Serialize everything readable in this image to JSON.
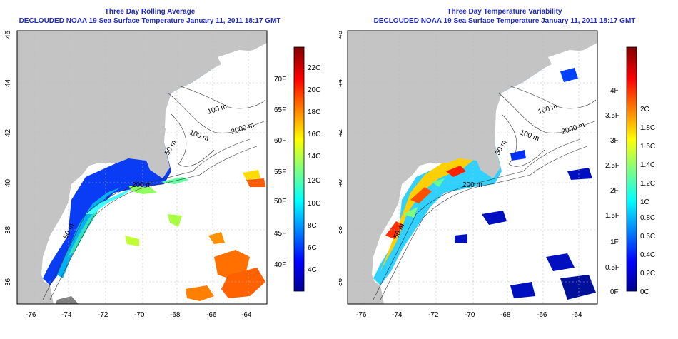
{
  "colors": {
    "land": "#c4c4c4",
    "ocean": "#ffffff",
    "title": "#1f28c8",
    "jet": [
      "#00008f",
      "#0000ff",
      "#0080ff",
      "#00ffff",
      "#80ff80",
      "#ffff00",
      "#ff8000",
      "#ff0000",
      "#800000"
    ]
  },
  "left_panel": {
    "title_line1": "Three Day Rolling Average",
    "title_line2": "DECLOUDED NOAA 19 Sea Surface Temperature January 11, 2011 18:17 GMT",
    "colorbar": {
      "fahrenheit": [
        "40F",
        "45F",
        "50F",
        "55F",
        "60F",
        "65F",
        "70F"
      ],
      "celsius": [
        "4C",
        "6C",
        "8C",
        "10C",
        "12C",
        "14C",
        "16C",
        "18C",
        "20C",
        "22C"
      ]
    }
  },
  "right_panel": {
    "title_line1": "Three Day Temperature Variability",
    "title_line2": "DECLOUDED NOAA 19 Sea Surface Temperature January 11, 2011 18:17 GMT",
    "colorbar": {
      "fahrenheit": [
        "0F",
        "0.5F",
        "1F",
        "1.5F",
        "2F",
        "2.5F",
        "3F",
        "3.5F",
        "4F"
      ],
      "celsius": [
        "0C",
        "0.2C",
        "0.4C",
        "0.6C",
        "0.8C",
        "1C",
        "1.2C",
        "1.4C",
        "1.6C",
        "1.8C",
        "2C"
      ]
    }
  },
  "axes": {
    "longitude_ticks": [
      "-76",
      "-74",
      "-72",
      "-70",
      "-68",
      "-66",
      "-64"
    ],
    "latitude_ticks": [
      "36",
      "38",
      "40",
      "42",
      "44",
      "46"
    ]
  },
  "contour_labels": [
    "100 m",
    "2000 m",
    "100 m",
    "50 m",
    "200 m",
    "50 m"
  ]
}
